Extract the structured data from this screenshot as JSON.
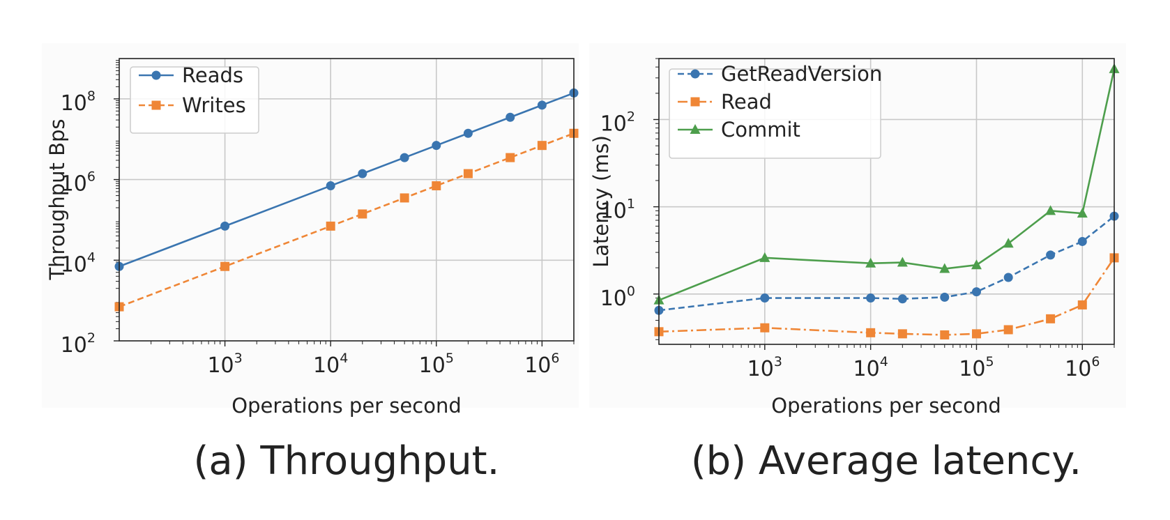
{
  "chart_data": [
    {
      "type": "line",
      "caption": "(a) Throughput.",
      "xlabel": "Operations per second",
      "ylabel": "Throughput Bps",
      "xscale": "log",
      "yscale": "log",
      "xlim": [
        100,
        2000000
      ],
      "ylim": [
        100,
        1000000000
      ],
      "xticks": [
        {
          "base": "10",
          "exp": "3",
          "value": 1000
        },
        {
          "base": "10",
          "exp": "4",
          "value": 10000
        },
        {
          "base": "10",
          "exp": "5",
          "value": 100000
        },
        {
          "base": "10",
          "exp": "6",
          "value": 1000000
        }
      ],
      "yticks": [
        {
          "base": "10",
          "exp": "2",
          "value": 100
        },
        {
          "base": "10",
          "exp": "4",
          "value": 10000
        },
        {
          "base": "10",
          "exp": "6",
          "value": 1000000
        },
        {
          "base": "10",
          "exp": "8",
          "value": 100000000
        }
      ],
      "grid": true,
      "legend_position": "top-left",
      "x": [
        100,
        1000,
        10000,
        20000,
        50000,
        100000,
        200000,
        500000,
        1000000,
        2000000
      ],
      "series": [
        {
          "name": "Reads",
          "color": "#3a75b0",
          "marker": "circle",
          "linestyle": "solid",
          "values": [
            7000,
            70000,
            700000,
            1400000,
            3500000,
            7000000,
            14000000,
            35000000,
            70000000,
            140000000
          ]
        },
        {
          "name": "Writes",
          "color": "#ef8636",
          "marker": "square",
          "linestyle": "dashed",
          "values": [
            700,
            7000,
            70000,
            140000,
            350000,
            700000,
            1400000,
            3500000,
            7000000,
            14000000
          ]
        }
      ]
    },
    {
      "type": "line",
      "caption": "(b) Average latency.",
      "xlabel": "Operations per second",
      "ylabel": "Latency (ms)",
      "xscale": "log",
      "yscale": "log",
      "xlim": [
        100,
        2000000
      ],
      "ylim": [
        0.265,
        500
      ],
      "xticks": [
        {
          "base": "10",
          "exp": "3",
          "value": 1000
        },
        {
          "base": "10",
          "exp": "4",
          "value": 10000
        },
        {
          "base": "10",
          "exp": "5",
          "value": 100000
        },
        {
          "base": "10",
          "exp": "6",
          "value": 1000000
        }
      ],
      "yticks": [
        {
          "base": "10",
          "exp": "0",
          "value": 1
        },
        {
          "base": "10",
          "exp": "1",
          "value": 10
        },
        {
          "base": "10",
          "exp": "2",
          "value": 100
        }
      ],
      "grid": true,
      "legend_position": "top-left",
      "x": [
        100,
        1000,
        10000,
        20000,
        50000,
        100000,
        200000,
        500000,
        1000000,
        2000000
      ],
      "series": [
        {
          "name": "GetReadVersion",
          "color": "#3a75b0",
          "marker": "circle",
          "linestyle": "dashed",
          "values": [
            0.65,
            0.9,
            0.9,
            0.88,
            0.92,
            1.06,
            1.55,
            2.8,
            4.0,
            7.8
          ]
        },
        {
          "name": "Read",
          "color": "#ef8636",
          "marker": "square",
          "linestyle": "dashdot",
          "values": [
            0.37,
            0.41,
            0.36,
            0.35,
            0.34,
            0.35,
            0.39,
            0.52,
            0.75,
            2.6
          ]
        },
        {
          "name": "Commit",
          "color": "#4d9e4c",
          "marker": "triangle",
          "linestyle": "solid",
          "values": [
            0.85,
            2.6,
            2.25,
            2.3,
            1.95,
            2.15,
            3.8,
            9.0,
            8.4,
            380
          ]
        }
      ]
    }
  ]
}
